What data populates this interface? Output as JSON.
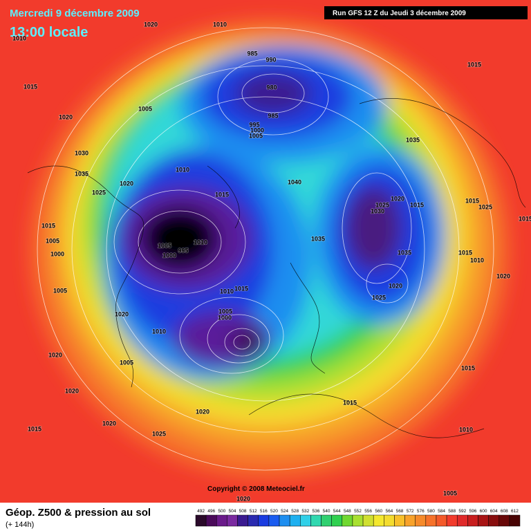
{
  "header": {
    "date": "Mercredi 9 décembre 2009",
    "time": "13:00 locale",
    "run": "Run GFS 12 Z du Jeudi 3 décembre 2009"
  },
  "footer": {
    "title": "Géop. Z500 & pression au sol",
    "lead": "(+ 144h)",
    "copyright": "Copyright © 2008 Meteociel.fr"
  },
  "legend": {
    "levels": [
      492,
      496,
      500,
      504,
      508,
      512,
      516,
      520,
      524,
      528,
      532,
      536,
      540,
      544,
      548,
      552,
      556,
      560,
      564,
      568,
      572,
      576,
      580,
      584,
      588,
      592,
      596,
      600,
      604,
      608,
      612
    ],
    "colors": [
      "#2a0a2a",
      "#4a0a5a",
      "#6a1a8a",
      "#7a2aa0",
      "#3a1a90",
      "#2a2ab0",
      "#1a3ce0",
      "#1a5cf0",
      "#1e8ef0",
      "#1eb0f0",
      "#30d0e8",
      "#30d8b0",
      "#30d070",
      "#30d050",
      "#70d830",
      "#a8e030",
      "#d0e030",
      "#f4e82e",
      "#f4dc2e",
      "#f8c02a",
      "#f8a22a",
      "#f68a2a",
      "#f6722a",
      "#f45a2a",
      "#f23b2c",
      "#e02a2a",
      "#c81e1e",
      "#a81414",
      "#880e0e",
      "#680808",
      "#480404"
    ]
  },
  "isobar_labels": [
    1020,
    1010,
    1010,
    1015,
    985,
    990,
    980,
    985,
    995,
    1000,
    1005,
    1005,
    1020,
    1030,
    1035,
    1010,
    1020,
    1025,
    1015,
    1040,
    1035,
    1015,
    1020,
    1015,
    1025,
    1030,
    1015,
    1025,
    1015,
    1015,
    1005,
    1000,
    1005,
    1000,
    995,
    1010,
    1035,
    1035,
    1015,
    1010,
    1020,
    1020,
    1025,
    1010,
    1015,
    1005,
    1000,
    1010,
    1020,
    1005,
    1020,
    1005,
    1020,
    1020,
    1015,
    1015,
    1020,
    1015,
    1025,
    1010,
    1020,
    1005
  ]
}
